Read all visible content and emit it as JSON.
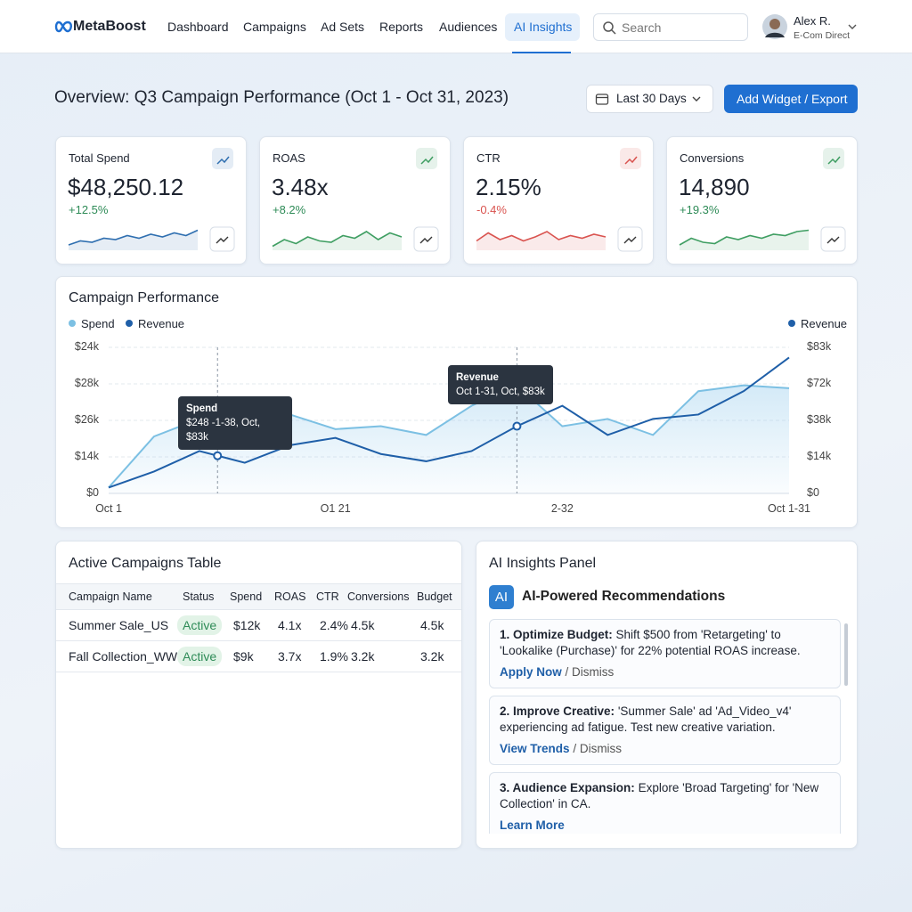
{
  "nav": {
    "brand": "MetaBoost",
    "items": [
      "Dashboard",
      "Campaigns",
      "Ad Sets",
      "Reports",
      "Audiences",
      "AI Insights"
    ],
    "search": "Search",
    "user": {
      "name": "Alex R.",
      "role": "E-Com Direct"
    }
  },
  "header": {
    "title": "Overview: Q3 Campaign Performance (Oct 1 - Oct 31, 2023)",
    "date_range": "Last 30 Days",
    "action": "Add Widget / Export"
  },
  "kpis": [
    {
      "label": "Total Spend",
      "value": "$48,250.12",
      "change": "+12.5%",
      "color": "#2f6fb0",
      "change_color": "#2e8b57",
      "spark": [
        20,
        35,
        30,
        45,
        40,
        55,
        45,
        60,
        50,
        65,
        55,
        75
      ]
    },
    {
      "label": "ROAS",
      "value": "3.48x",
      "change": "+8.2%",
      "color": "#3f9e62",
      "change_color": "#2e8b57",
      "spark": [
        15,
        40,
        25,
        50,
        35,
        30,
        55,
        45,
        70,
        40,
        65,
        50
      ]
    },
    {
      "label": "CTR",
      "value": "2.15%",
      "change": "-0.4%",
      "color": "#d9534f",
      "change_color": "#d9534f",
      "spark": [
        35,
        65,
        40,
        55,
        35,
        50,
        70,
        40,
        55,
        45,
        60,
        50
      ]
    },
    {
      "label": "Conversions",
      "value": "14,890",
      "change": "+19.3%",
      "color": "#3f9e62",
      "change_color": "#2e8b57",
      "spark": [
        20,
        45,
        30,
        25,
        50,
        40,
        55,
        45,
        60,
        55,
        70,
        75
      ]
    }
  ],
  "performance": {
    "title": "Campaign Performance",
    "ylim": [
      0,
      100
    ],
    "series": [
      {
        "name": "Spend",
        "color": "#7cc0e3",
        "values": [
          4,
          39,
          51,
          54,
          54,
          44,
          46,
          40,
          60,
          74,
          46,
          51,
          40,
          70,
          74,
          72
        ]
      },
      {
        "name": "Revenue",
        "color": "#1f5fa8",
        "values": [
          4,
          15,
          29,
          21,
          33,
          38,
          27,
          22,
          29,
          46,
          60,
          40,
          51,
          54,
          70,
          93
        ]
      }
    ],
    "y_labels": [
      "$24k",
      "$28k",
      "$26k",
      "$14k",
      "$0"
    ],
    "y2_labels": [
      "$83k",
      "$72k",
      "$38k",
      "$14k",
      "$0"
    ],
    "x_labels": [
      "Oct 1",
      "O1 21",
      "2-32",
      "Oct 1-31"
    ],
    "tooltips": [
      {
        "title": "Spend",
        "text": "$248 -1-38, Oct, $83k"
      },
      {
        "title": "Revenue",
        "text": "Oct 1-31, Oct, $83k"
      }
    ]
  },
  "table": {
    "title": "Active Campaigns Table",
    "columns": [
      "Campaign Name",
      "Status",
      "Spend",
      "ROAS",
      "CTR",
      "Conversions",
      "Budget"
    ],
    "rows": [
      [
        "Summer Sale_US",
        "Active",
        "$12k",
        "4.1x",
        "2.4%",
        "4.5k",
        "4.5k"
      ],
      [
        "Fall Collection_WW",
        "Active",
        "$9k",
        "3.7x",
        "1.9%",
        "3.2k",
        "3.2k"
      ]
    ]
  },
  "insights": {
    "title": "AI Insights Panel",
    "badge": "AI",
    "heading": "AI-Powered Recommendations",
    "items": [
      {
        "title": "1. Optimize Budget:",
        "text": "Shift $500 from 'Retargeting' to 'Lookalike (Purchase)' for 22% potential ROAS increase.",
        "action": "Apply Now",
        "dismiss": "/ Dismiss"
      },
      {
        "title": "2. Improve Creative:",
        "text": "'Summer Sale' ad 'Ad_Video_v4' experiencing ad fatigue. Test new creative variation.",
        "action": "View Trends",
        "dismiss": "/ Dismiss"
      },
      {
        "title": "3. Audience Expansion:",
        "text": "Explore 'Broad Targeting' for 'New Collection' in CA.",
        "action": "Learn More"
      }
    ]
  }
}
